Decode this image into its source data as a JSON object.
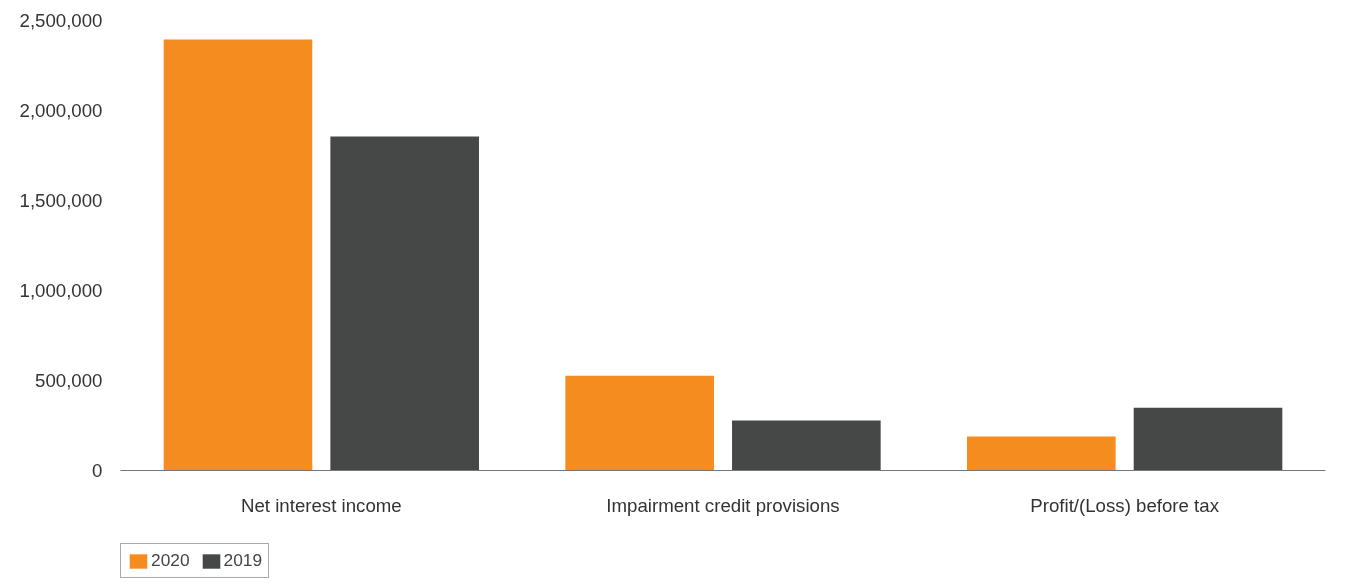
{
  "chart_data": {
    "type": "bar",
    "categories": [
      "Net interest income",
      "Impairment credit provisions",
      "Profit/(Loss) before tax"
    ],
    "series": [
      {
        "name": "2020",
        "color": "#f58c1f",
        "values": [
          2394000,
          526000,
          189000
        ]
      },
      {
        "name": "2019",
        "color": "#464848",
        "values": [
          1856000,
          278000,
          349000
        ]
      }
    ],
    "ylim": [
      0,
      2500000
    ],
    "yticks": [
      0,
      {
        "value": 500000,
        "label": "500,000"
      },
      {
        "value": 1000000,
        "label": "1,000,000"
      },
      {
        "value": 1500000,
        "label": "1,500,000"
      },
      {
        "value": 2000000,
        "label": "2,000,000"
      },
      {
        "value": 2500000,
        "label": "2,500,000"
      }
    ],
    "grid": false,
    "legend": "bottom left"
  }
}
